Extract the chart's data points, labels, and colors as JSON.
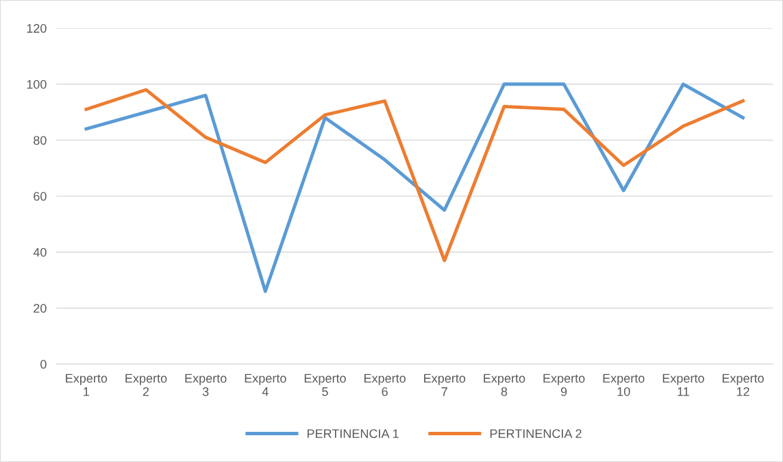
{
  "chart_data": {
    "type": "line",
    "categories": [
      "Experto\n1",
      "Experto\n2",
      "Experto\n3",
      "Experto\n4",
      "Experto\n5",
      "Experto\n6",
      "Experto\n7",
      "Experto\n8",
      "Experto\n9",
      "Experto\n10",
      "Experto\n11",
      "Experto\n12"
    ],
    "series": [
      {
        "name": "PERTINENCIA 1",
        "color": "#5b9bd5",
        "values": [
          84,
          90,
          96,
          26,
          88,
          73,
          55,
          100,
          100,
          62,
          100,
          88
        ]
      },
      {
        "name": "PERTINENCIA 2",
        "color": "#ed7d31",
        "values": [
          91,
          98,
          81,
          72,
          89,
          94,
          37,
          92,
          91,
          71,
          85,
          94
        ]
      }
    ],
    "ylim": [
      0,
      120
    ],
    "yticks": [
      0,
      20,
      40,
      60,
      80,
      100,
      120
    ],
    "grid": "y",
    "legend": "bottom",
    "marker": "none",
    "line_style": "solid"
  }
}
